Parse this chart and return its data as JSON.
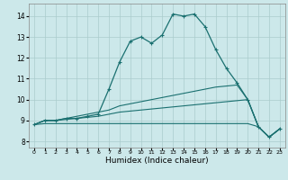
{
  "xlabel": "Humidex (Indice chaleur)",
  "background_color": "#cce8ea",
  "grid_color": "#aacccc",
  "line_color": "#1a7070",
  "xlim": [
    -0.5,
    23.5
  ],
  "ylim": [
    7.7,
    14.6
  ],
  "yticks": [
    8,
    9,
    10,
    11,
    12,
    13,
    14
  ],
  "xticks": [
    0,
    1,
    2,
    3,
    4,
    5,
    6,
    7,
    8,
    9,
    10,
    11,
    12,
    13,
    14,
    15,
    16,
    17,
    18,
    19,
    20,
    21,
    22,
    23
  ],
  "series_main": [
    8.8,
    9.0,
    9.0,
    9.1,
    9.1,
    9.2,
    9.3,
    10.5,
    11.8,
    12.8,
    13.0,
    12.7,
    13.1,
    14.1,
    14.0,
    14.1,
    13.5,
    12.4,
    11.5,
    10.8,
    10.0,
    8.7,
    8.2,
    8.6
  ],
  "series2": [
    8.8,
    9.0,
    9.0,
    9.1,
    9.2,
    9.3,
    9.4,
    9.5,
    9.7,
    9.8,
    9.9,
    10.0,
    10.1,
    10.2,
    10.3,
    10.4,
    10.5,
    10.6,
    10.65,
    10.7,
    10.0,
    8.7,
    8.2,
    8.6
  ],
  "series3": [
    8.8,
    9.0,
    9.0,
    9.05,
    9.1,
    9.15,
    9.2,
    9.3,
    9.4,
    9.45,
    9.5,
    9.55,
    9.6,
    9.65,
    9.7,
    9.75,
    9.8,
    9.85,
    9.9,
    9.95,
    10.0,
    8.7,
    8.2,
    8.6
  ],
  "series4": [
    8.8,
    8.85,
    8.85,
    8.85,
    8.85,
    8.85,
    8.85,
    8.85,
    8.85,
    8.85,
    8.85,
    8.85,
    8.85,
    8.85,
    8.85,
    8.85,
    8.85,
    8.85,
    8.85,
    8.85,
    8.85,
    8.7,
    8.2,
    8.6
  ]
}
